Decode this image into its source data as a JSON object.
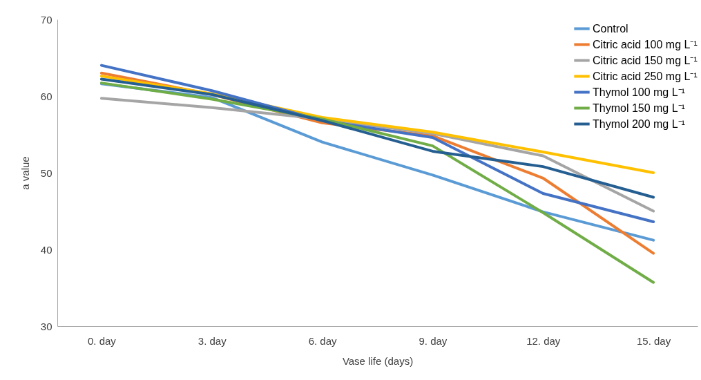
{
  "chart_data": {
    "type": "line",
    "xlabel": "Vase life (days)",
    "ylabel": "a value",
    "categories": [
      "0. day",
      "3. day",
      "6. day",
      "9. day",
      "12. day",
      "15. day"
    ],
    "ylim": [
      30,
      70
    ],
    "yticks": [
      30,
      40,
      50,
      60,
      70
    ],
    "grid": false,
    "legend": "top right",
    "marker": "none",
    "line_style": "solid",
    "series": [
      {
        "name": "Control",
        "color": "#5b9bd5",
        "values": [
          61.6,
          59.8,
          54.0,
          49.7,
          44.9,
          41.2
        ]
      },
      {
        "name": "Citric acid 100 mg L⁻¹",
        "color": "#ed7d31",
        "values": [
          63.0,
          60.2,
          56.5,
          54.8,
          49.3,
          39.5
        ]
      },
      {
        "name": "Citric acid 150 mg L⁻¹",
        "color": "#a5a5a5",
        "values": [
          59.7,
          58.5,
          57.0,
          55.1,
          52.2,
          45.0
        ]
      },
      {
        "name": "Citric acid 250 mg L⁻¹",
        "color": "#ffc000",
        "values": [
          62.6,
          60.3,
          57.2,
          55.3,
          52.7,
          50.0
        ]
      },
      {
        "name": "Thymol 100 mg L⁻¹",
        "color": "#4472c4",
        "values": [
          64.0,
          60.7,
          56.8,
          54.6,
          47.3,
          43.6
        ]
      },
      {
        "name": "Thymol 150 mg L⁻¹",
        "color": "#70ad47",
        "values": [
          61.7,
          59.6,
          57.0,
          53.5,
          44.8,
          35.7
        ]
      },
      {
        "name": "Thymol 200 mg L⁻¹",
        "color": "#255e91",
        "values": [
          62.2,
          60.2,
          56.8,
          52.8,
          50.8,
          46.8
        ]
      }
    ]
  }
}
